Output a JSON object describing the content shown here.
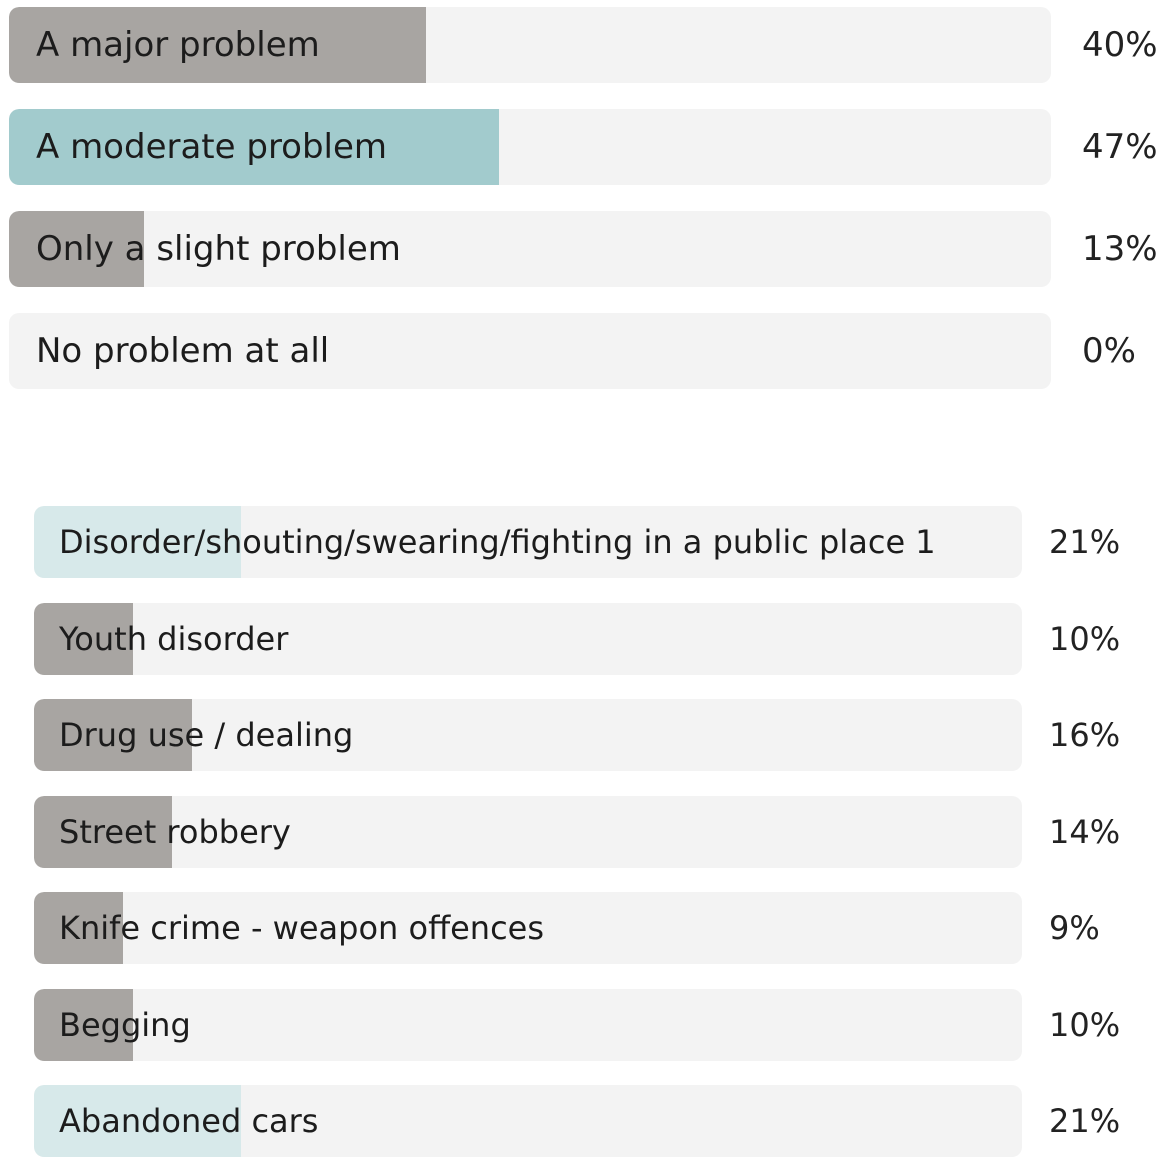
{
  "colors": {
    "track": "#f3f3f3",
    "gray_fill": "#a8a5a2",
    "teal_fill": "#a2cbcd",
    "light_teal_fill": "#d7e9ea"
  },
  "chart_data": [
    {
      "type": "bar",
      "orientation": "horizontal",
      "categories": [
        "A major problem",
        "A moderate problem",
        "Only a slight problem",
        "No problem at all"
      ],
      "values": [
        40,
        47,
        13,
        0
      ],
      "value_labels": [
        "40%",
        "47%",
        "13%",
        "0%"
      ],
      "bar_colors": [
        "#a8a5a2",
        "#a2cbcd",
        "#a8a5a2",
        "#a8a5a2"
      ],
      "xlim": [
        0,
        100
      ]
    },
    {
      "type": "bar",
      "orientation": "horizontal",
      "categories": [
        "Disorder/shouting/swearing/fighting in a public place 1",
        "Youth disorder",
        "Drug use / dealing",
        "Street robbery",
        "Knife crime -  weapon offences",
        "Begging",
        "Abandoned cars"
      ],
      "values": [
        21,
        10,
        16,
        14,
        9,
        10,
        21
      ],
      "value_labels": [
        "21%",
        "10%",
        "16%",
        "14%",
        "9%",
        "10%",
        "21%"
      ],
      "bar_colors": [
        "#d7e9ea",
        "#a8a5a2",
        "#a8a5a2",
        "#a8a5a2",
        "#a8a5a2",
        "#a8a5a2",
        "#d7e9ea"
      ],
      "xlim": [
        0,
        100
      ]
    }
  ]
}
